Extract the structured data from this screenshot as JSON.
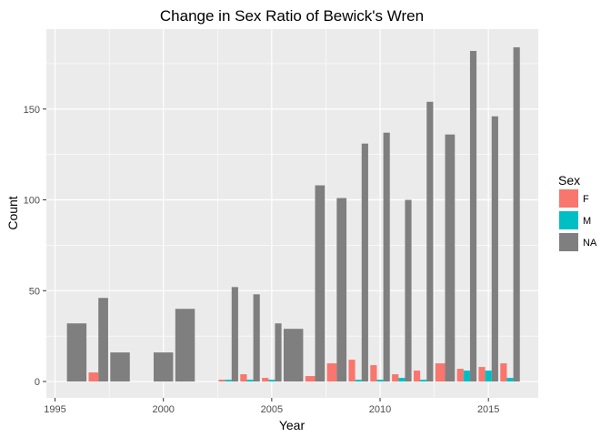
{
  "chart_data": {
    "type": "bar",
    "title": "Change in Sex Ratio of Bewick's Wren",
    "xlabel": "Year",
    "ylabel": "Count",
    "xlim": [
      1994.6,
      2017.3
    ],
    "ylim": [
      -9,
      194
    ],
    "x_ticks": [
      1995,
      2000,
      2005,
      2010,
      2015
    ],
    "y_ticks": [
      0,
      50,
      100,
      150
    ],
    "grid": true,
    "legend": {
      "title": "Sex",
      "position": "right"
    },
    "colors": {
      "F": "#F8766D",
      "M": "#00BFC4",
      "NA": "#7F7F7F",
      "panel": "#EBEBEB",
      "grid": "#FFFFFF"
    },
    "series_order": [
      "F",
      "M",
      "NA"
    ],
    "data": [
      {
        "year": 1996,
        "F": null,
        "M": null,
        "NA": 32
      },
      {
        "year": 1997,
        "F": 5,
        "M": null,
        "NA": 46
      },
      {
        "year": 1998,
        "F": null,
        "M": null,
        "NA": 16
      },
      {
        "year": 2000,
        "F": null,
        "M": null,
        "NA": 16
      },
      {
        "year": 2001,
        "F": null,
        "M": null,
        "NA": 40
      },
      {
        "year": 2003,
        "F": 1,
        "M": 1,
        "NA": 52
      },
      {
        "year": 2004,
        "F": 4,
        "M": 1,
        "NA": 48
      },
      {
        "year": 2005,
        "F": 2,
        "M": 1,
        "NA": 32
      },
      {
        "year": 2006,
        "F": null,
        "M": null,
        "NA": 29
      },
      {
        "year": 2007,
        "F": 3,
        "M": null,
        "NA": 108
      },
      {
        "year": 2008,
        "F": 10,
        "M": null,
        "NA": 101
      },
      {
        "year": 2009,
        "F": 12,
        "M": 1,
        "NA": 131
      },
      {
        "year": 2010,
        "F": 9,
        "M": 1,
        "NA": 137
      },
      {
        "year": 2011,
        "F": 4,
        "M": 2,
        "NA": 100
      },
      {
        "year": 2012,
        "F": 6,
        "M": 1,
        "NA": 154
      },
      {
        "year": 2013,
        "F": 10,
        "M": null,
        "NA": 136
      },
      {
        "year": 2014,
        "F": 7,
        "M": 6,
        "NA": 182
      },
      {
        "year": 2015,
        "F": 8,
        "M": 6,
        "NA": 146
      },
      {
        "year": 2016,
        "F": 10,
        "M": 2,
        "NA": 184
      }
    ]
  }
}
